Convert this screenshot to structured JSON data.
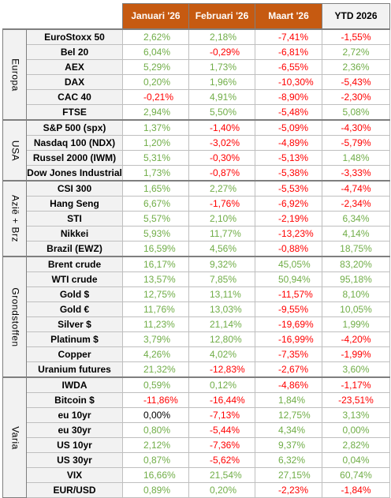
{
  "headers": [
    "Januari '26",
    "Februari '26",
    "Maart '26",
    "YTD 2026"
  ],
  "colors": {
    "positive": "#70ad47",
    "negative": "#ff0000",
    "header_bg": "#c65a11",
    "label_bg": "#f2f2f2"
  },
  "groups": [
    {
      "label": "Europa",
      "rows": [
        {
          "name": "EuroStoxx 50",
          "values": [
            "2,62%",
            "2,18%",
            "-7,41%",
            "-1,55%"
          ]
        },
        {
          "name": "Bel 20",
          "values": [
            "6,04%",
            "-0,29%",
            "-6,81%",
            "2,72%"
          ]
        },
        {
          "name": "AEX",
          "values": [
            "5,29%",
            "1,73%",
            "-6,55%",
            "2,36%"
          ]
        },
        {
          "name": "DAX",
          "values": [
            "0,20%",
            "1,96%",
            "-10,30%",
            "-5,43%"
          ]
        },
        {
          "name": "CAC 40",
          "values": [
            "-0,21%",
            "4,91%",
            "-8,90%",
            "-2,30%"
          ]
        },
        {
          "name": "FTSE",
          "values": [
            "2,94%",
            "5,50%",
            "-5,48%",
            "5,08%"
          ]
        }
      ]
    },
    {
      "label": "USA",
      "rows": [
        {
          "name": "S&P 500 (spx)",
          "values": [
            "1,37%",
            "-1,40%",
            "-5,09%",
            "-4,30%"
          ]
        },
        {
          "name": "Nasdaq 100 (NDX)",
          "values": [
            "1,20%",
            "-3,02%",
            "-4,89%",
            "-5,79%"
          ]
        },
        {
          "name": "Russel 2000 (IWM)",
          "values": [
            "5,31%",
            "-0,30%",
            "-5,13%",
            "1,48%"
          ]
        },
        {
          "name": "Dow Jones Industrial",
          "values": [
            "1,73%",
            "-0,87%",
            "-5,38%",
            "-3,33%"
          ]
        }
      ]
    },
    {
      "label": "Azië + Brz",
      "rows": [
        {
          "name": "CSI 300",
          "values": [
            "1,65%",
            "2,27%",
            "-5,53%",
            "-4,74%"
          ]
        },
        {
          "name": "Hang Seng",
          "values": [
            "6,67%",
            "-1,76%",
            "-6,92%",
            "-2,34%"
          ]
        },
        {
          "name": "STI",
          "values": [
            "5,57%",
            "2,10%",
            "-2,19%",
            "6,34%"
          ]
        },
        {
          "name": "Nikkei",
          "values": [
            "5,93%",
            "11,77%",
            "-13,23%",
            "4,14%"
          ]
        },
        {
          "name": "Brazil (EWZ)",
          "values": [
            "16,59%",
            "4,56%",
            "-0,88%",
            "18,75%"
          ]
        }
      ]
    },
    {
      "label": "Grondstoffen",
      "rows": [
        {
          "name": "Brent crude",
          "values": [
            "16,17%",
            "9,32%",
            "45,05%",
            "83,20%"
          ]
        },
        {
          "name": "WTI crude",
          "values": [
            "13,57%",
            "7,85%",
            "50,94%",
            "95,18%"
          ]
        },
        {
          "name": "Gold $",
          "values": [
            "12,75%",
            "13,11%",
            "-11,57%",
            "8,10%"
          ]
        },
        {
          "name": "Gold €",
          "values": [
            "11,76%",
            "13,03%",
            "-9,55%",
            "10,05%"
          ]
        },
        {
          "name": "Silver $",
          "values": [
            "11,23%",
            "21,14%",
            "-19,69%",
            "1,99%"
          ]
        },
        {
          "name": "Platinum $",
          "values": [
            "3,79%",
            "12,80%",
            "-16,99%",
            "-4,20%"
          ]
        },
        {
          "name": "Copper",
          "values": [
            "4,26%",
            "4,02%",
            "-7,35%",
            "-1,99%"
          ]
        },
        {
          "name": "Uranium futures",
          "values": [
            "21,32%",
            "-12,83%",
            "-2,67%",
            "3,60%"
          ]
        }
      ]
    },
    {
      "label": "Varia",
      "rows": [
        {
          "name": "IWDA",
          "values": [
            "0,59%",
            "0,12%",
            "-4,86%",
            "-1,17%"
          ]
        },
        {
          "name": "Bitcoin $",
          "values": [
            "-11,86%",
            "-16,44%",
            "1,84%",
            "-23,51%"
          ]
        },
        {
          "name": "eu 10yr",
          "values": [
            "0,00%",
            "-7,13%",
            "12,75%",
            "3,13%"
          ]
        },
        {
          "name": "eu 30yr",
          "values": [
            "0,80%",
            "-5,44%",
            "4,34%",
            "0,00%"
          ]
        },
        {
          "name": "US 10yr",
          "values": [
            "2,12%",
            "-7,36%",
            "9,37%",
            "2,82%"
          ]
        },
        {
          "name": "US 30yr",
          "values": [
            "0,87%",
            "-5,62%",
            "6,32%",
            "0,04%"
          ]
        },
        {
          "name": "VIX",
          "values": [
            "16,66%",
            "21,54%",
            "27,15%",
            "60,74%"
          ]
        },
        {
          "name": "EUR/USD",
          "values": [
            "0,89%",
            "0,20%",
            "-2,23%",
            "-1,84%"
          ]
        }
      ]
    }
  ]
}
